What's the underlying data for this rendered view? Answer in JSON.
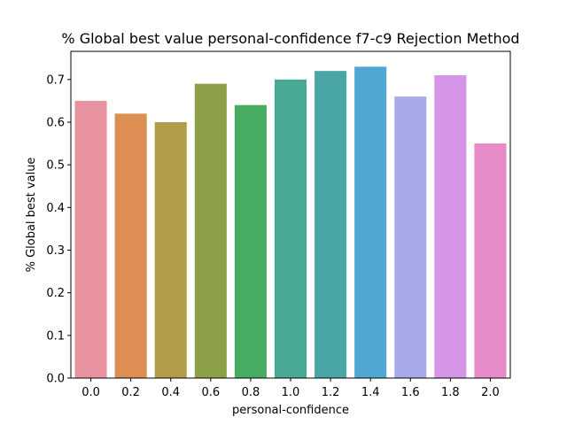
{
  "chart_data": {
    "type": "bar",
    "title": "% Global best value personal-confidence f7-c9 Rejection Method",
    "xlabel": "personal-confidence",
    "ylabel": "% Global best value",
    "categories": [
      "0.0",
      "0.2",
      "0.4",
      "0.6",
      "0.8",
      "1.0",
      "1.2",
      "1.4",
      "1.6",
      "1.8",
      "2.0"
    ],
    "values": [
      0.65,
      0.62,
      0.6,
      0.69,
      0.64,
      0.7,
      0.72,
      0.73,
      0.66,
      0.71,
      0.55
    ],
    "colors": [
      "#e8929f",
      "#dd8f53",
      "#b29c4a",
      "#8ba046",
      "#47ac61",
      "#4aa996",
      "#4aa6a5",
      "#50a7d3",
      "#a8a9e8",
      "#d595e7",
      "#e78ac8"
    ],
    "yticks": [
      "0.0",
      "0.1",
      "0.2",
      "0.3",
      "0.4",
      "0.5",
      "0.6",
      "0.7"
    ],
    "ylim": [
      0,
      0.766
    ],
    "grid": false,
    "legend": "none"
  }
}
